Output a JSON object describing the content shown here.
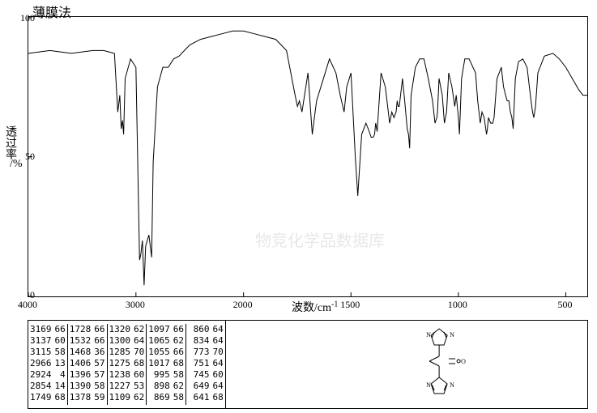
{
  "title": "薄膜法",
  "ylabel": "透过率",
  "ypercent": "/%",
  "xlabel": "波数/cm",
  "xlabel_sup": "-1",
  "watermark": "物竞化学品数据库",
  "chart": {
    "type": "line",
    "xlim": [
      4000,
      400
    ],
    "ylim": [
      0,
      100
    ],
    "yticks": [
      0,
      50,
      100
    ],
    "xticks": [
      4000,
      3000,
      2000,
      1500,
      1000,
      500
    ],
    "background_color": "#ffffff",
    "line_color": "#000000",
    "line_width": 1,
    "spectrum": [
      [
        4000,
        87
      ],
      [
        3800,
        88
      ],
      [
        3600,
        87
      ],
      [
        3400,
        88
      ],
      [
        3300,
        88
      ],
      [
        3200,
        87
      ],
      [
        3169,
        66
      ],
      [
        3150,
        72
      ],
      [
        3137,
        60
      ],
      [
        3125,
        63
      ],
      [
        3115,
        58
      ],
      [
        3100,
        78
      ],
      [
        3050,
        85
      ],
      [
        3000,
        82
      ],
      [
        2966,
        13
      ],
      [
        2955,
        15
      ],
      [
        2940,
        20
      ],
      [
        2924,
        4
      ],
      [
        2910,
        18
      ],
      [
        2880,
        22
      ],
      [
        2854,
        14
      ],
      [
        2840,
        48
      ],
      [
        2800,
        75
      ],
      [
        2750,
        82
      ],
      [
        2700,
        82
      ],
      [
        2650,
        85
      ],
      [
        2600,
        86
      ],
      [
        2500,
        90
      ],
      [
        2400,
        92
      ],
      [
        2300,
        93
      ],
      [
        2200,
        94
      ],
      [
        2100,
        95
      ],
      [
        2000,
        95
      ],
      [
        1950,
        94
      ],
      [
        1900,
        93
      ],
      [
        1850,
        92
      ],
      [
        1800,
        88
      ],
      [
        1780,
        80
      ],
      [
        1760,
        72
      ],
      [
        1749,
        68
      ],
      [
        1740,
        70
      ],
      [
        1728,
        66
      ],
      [
        1700,
        80
      ],
      [
        1680,
        58
      ],
      [
        1660,
        70
      ],
      [
        1640,
        75
      ],
      [
        1600,
        85
      ],
      [
        1570,
        80
      ],
      [
        1550,
        72
      ],
      [
        1532,
        66
      ],
      [
        1520,
        75
      ],
      [
        1500,
        80
      ],
      [
        1480,
        50
      ],
      [
        1468,
        36
      ],
      [
        1450,
        58
      ],
      [
        1430,
        62
      ],
      [
        1420,
        60
      ],
      [
        1406,
        57
      ],
      [
        1396,
        57
      ],
      [
        1390,
        58
      ],
      [
        1385,
        62
      ],
      [
        1378,
        59
      ],
      [
        1360,
        80
      ],
      [
        1340,
        75
      ],
      [
        1320,
        62
      ],
      [
        1310,
        66
      ],
      [
        1300,
        64
      ],
      [
        1290,
        66
      ],
      [
        1285,
        70
      ],
      [
        1280,
        68
      ],
      [
        1275,
        68
      ],
      [
        1260,
        78
      ],
      [
        1250,
        70
      ],
      [
        1238,
        60
      ],
      [
        1232,
        58
      ],
      [
        1227,
        53
      ],
      [
        1220,
        72
      ],
      [
        1200,
        82
      ],
      [
        1180,
        85
      ],
      [
        1160,
        85
      ],
      [
        1140,
        78
      ],
      [
        1120,
        70
      ],
      [
        1109,
        62
      ],
      [
        1100,
        64
      ],
      [
        1097,
        66
      ],
      [
        1090,
        78
      ],
      [
        1075,
        72
      ],
      [
        1065,
        62
      ],
      [
        1060,
        64
      ],
      [
        1055,
        66
      ],
      [
        1045,
        80
      ],
      [
        1030,
        75
      ],
      [
        1017,
        68
      ],
      [
        1010,
        72
      ],
      [
        1000,
        64
      ],
      [
        995,
        58
      ],
      [
        985,
        78
      ],
      [
        970,
        85
      ],
      [
        950,
        85
      ],
      [
        920,
        80
      ],
      [
        910,
        70
      ],
      [
        898,
        62
      ],
      [
        890,
        66
      ],
      [
        880,
        64
      ],
      [
        869,
        58
      ],
      [
        865,
        60
      ],
      [
        860,
        64
      ],
      [
        850,
        62
      ],
      [
        840,
        62
      ],
      [
        834,
        64
      ],
      [
        820,
        78
      ],
      [
        800,
        82
      ],
      [
        790,
        75
      ],
      [
        780,
        72
      ],
      [
        773,
        70
      ],
      [
        765,
        70
      ],
      [
        758,
        66
      ],
      [
        751,
        64
      ],
      [
        748,
        62
      ],
      [
        745,
        60
      ],
      [
        735,
        78
      ],
      [
        720,
        84
      ],
      [
        700,
        85
      ],
      [
        680,
        82
      ],
      [
        665,
        72
      ],
      [
        655,
        66
      ],
      [
        649,
        64
      ],
      [
        645,
        66
      ],
      [
        641,
        68
      ],
      [
        630,
        80
      ],
      [
        600,
        86
      ],
      [
        560,
        87
      ],
      [
        530,
        85
      ],
      [
        500,
        82
      ],
      [
        470,
        78
      ],
      [
        440,
        74
      ],
      [
        420,
        72
      ],
      [
        400,
        72
      ]
    ]
  },
  "table": {
    "columns": [
      [
        [
          "3169",
          "66"
        ],
        [
          "3137",
          "60"
        ],
        [
          "3115",
          "58"
        ],
        [
          "2966",
          "13"
        ],
        [
          "2924",
          " 4"
        ],
        [
          "2854",
          "14"
        ],
        [
          "1749",
          "68"
        ]
      ],
      [
        [
          "1728",
          "66"
        ],
        [
          "1532",
          "66"
        ],
        [
          "1468",
          "36"
        ],
        [
          "1406",
          "57"
        ],
        [
          "1396",
          "57"
        ],
        [
          "1390",
          "58"
        ],
        [
          "1378",
          "59"
        ]
      ],
      [
        [
          "1320",
          "62"
        ],
        [
          "1300",
          "64"
        ],
        [
          "1285",
          "70"
        ],
        [
          "1275",
          "68"
        ],
        [
          "1238",
          "60"
        ],
        [
          "1227",
          "53"
        ],
        [
          "1109",
          "62"
        ]
      ],
      [
        [
          "1097",
          "66"
        ],
        [
          "1065",
          "62"
        ],
        [
          "1055",
          "66"
        ],
        [
          "1017",
          "68"
        ],
        [
          " 995",
          "58"
        ],
        [
          " 898",
          "62"
        ],
        [
          " 869",
          "58"
        ]
      ],
      [
        [
          "860",
          "64"
        ],
        [
          "834",
          "64"
        ],
        [
          "773",
          "70"
        ],
        [
          "751",
          "64"
        ],
        [
          "745",
          "60"
        ],
        [
          "649",
          "64"
        ],
        [
          "641",
          "68"
        ]
      ]
    ]
  }
}
